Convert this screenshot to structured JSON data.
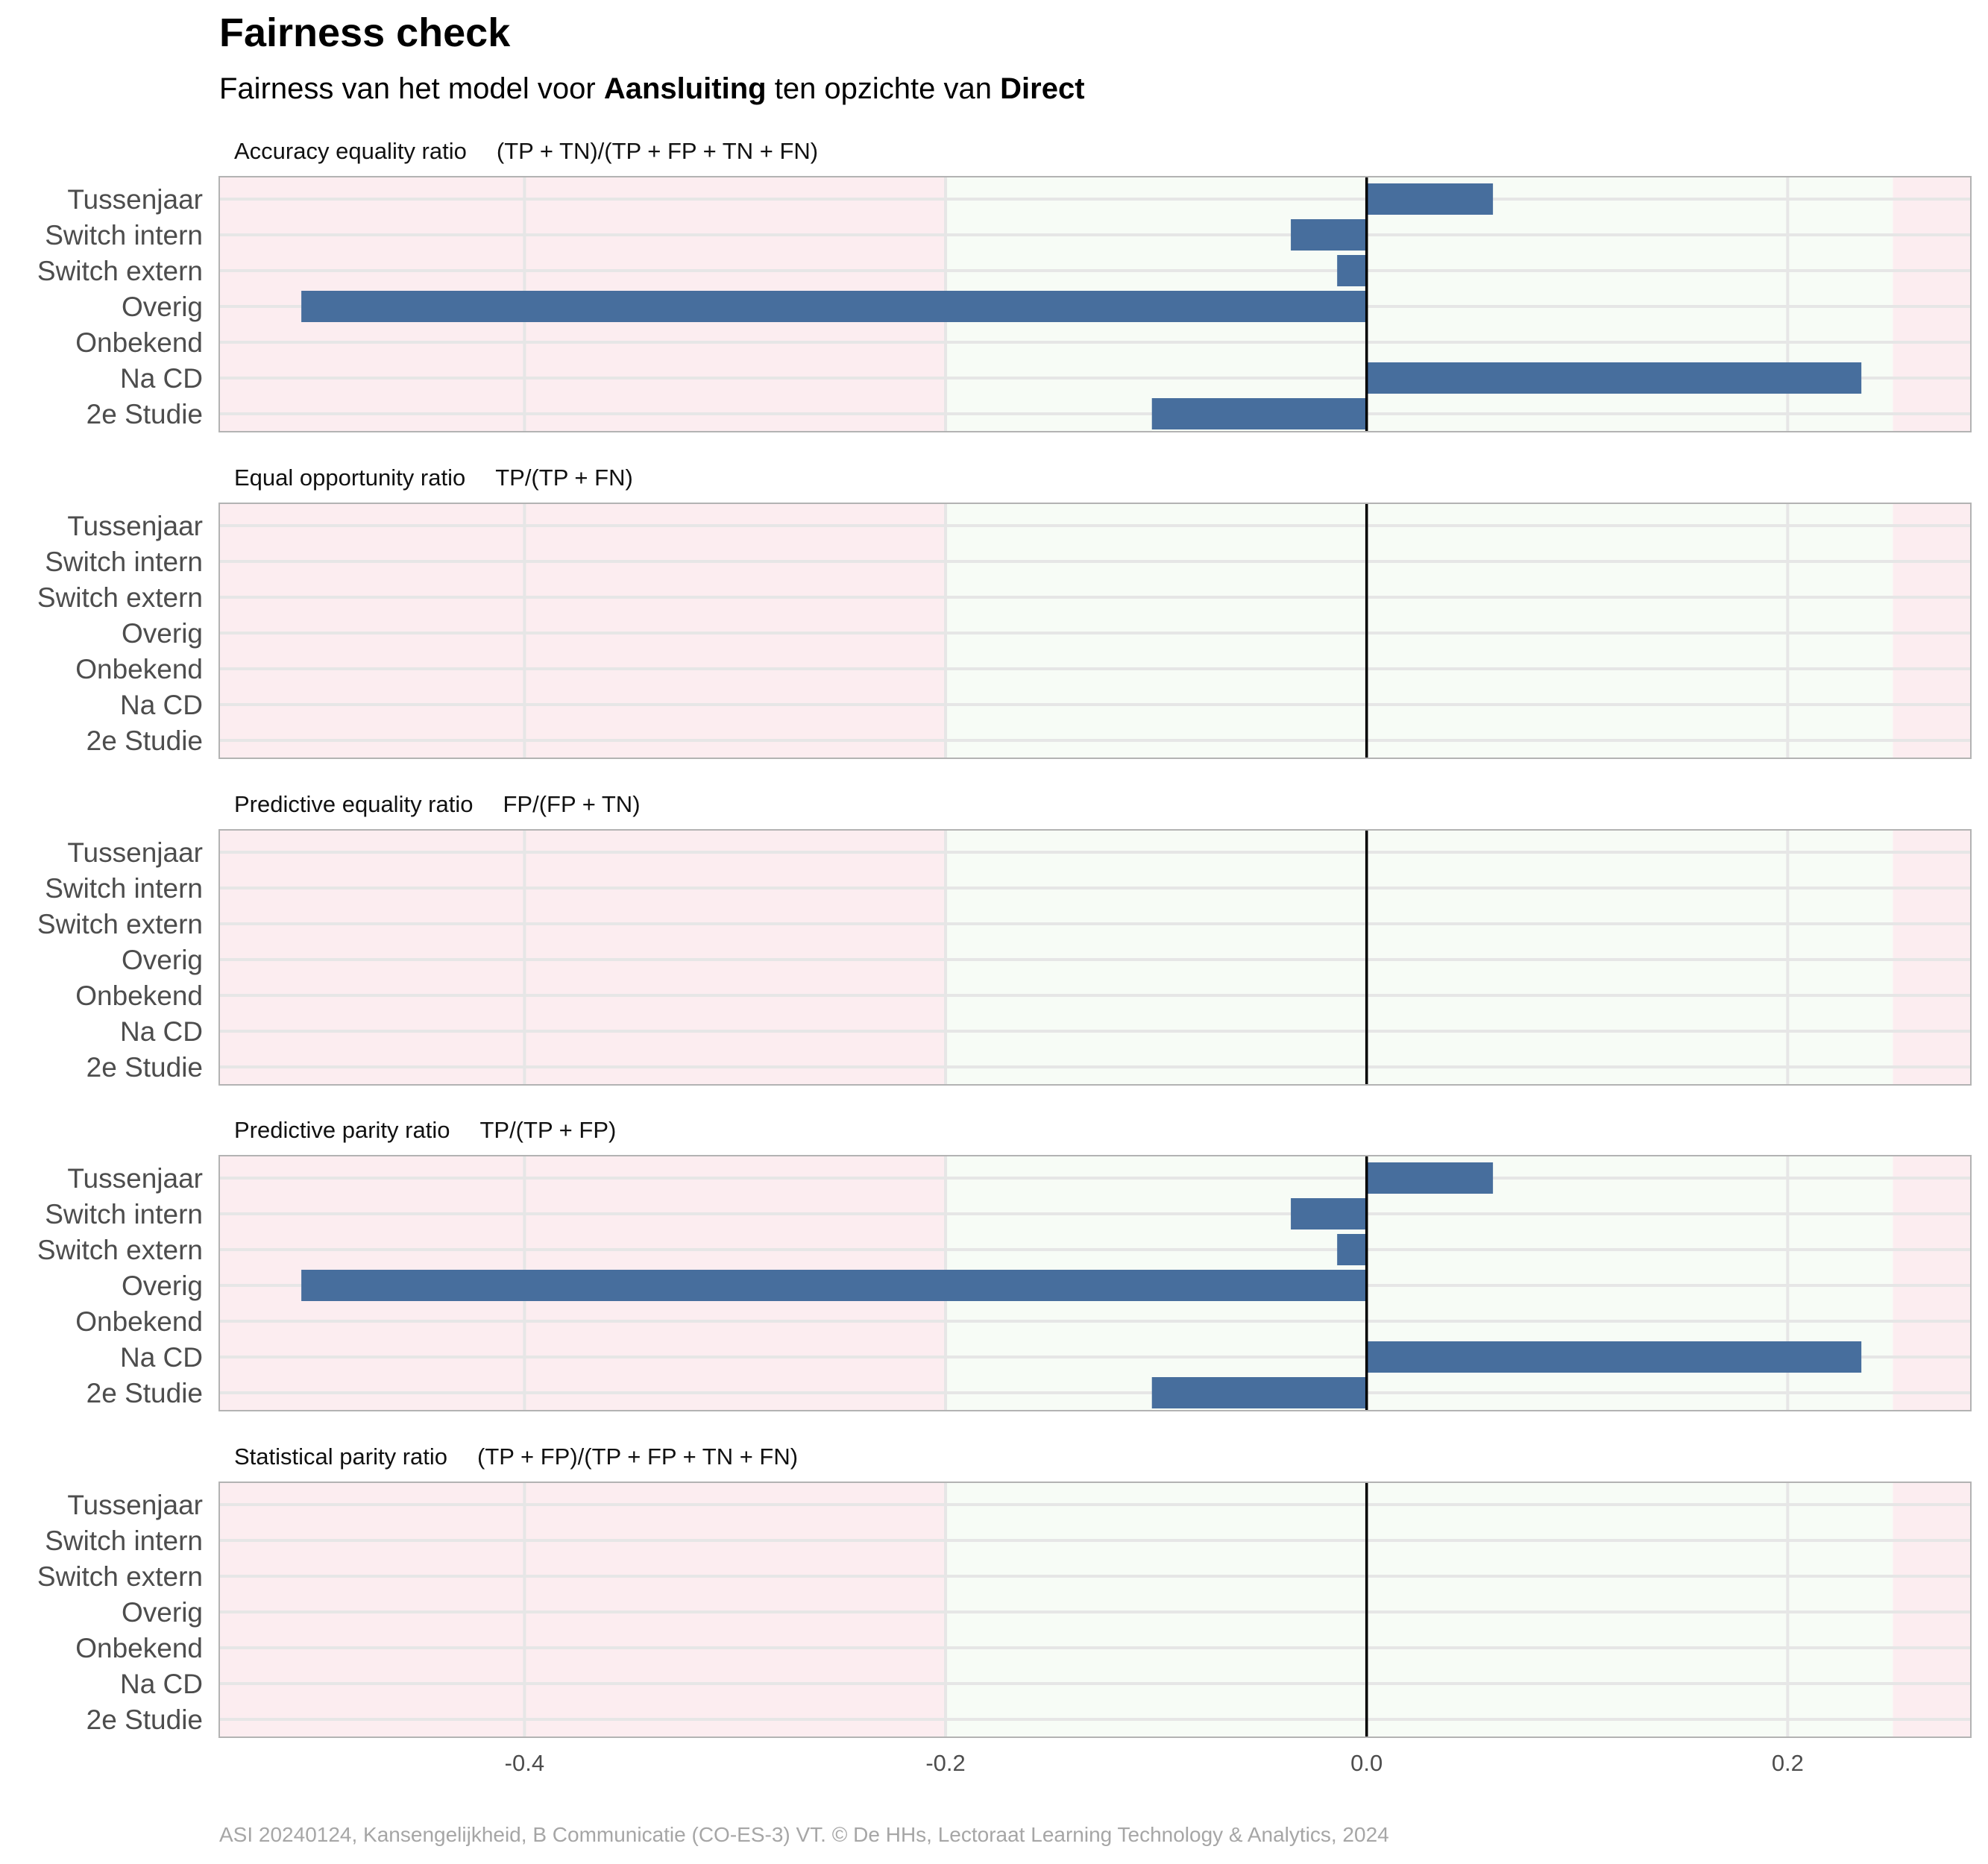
{
  "chart_data": {
    "type": "bar",
    "orientation": "horizontal",
    "title": "Fairness check",
    "subtitle": {
      "prefix": "Fairness van het model voor ",
      "model": "Aansluiting",
      "middle": " ten opzichte van ",
      "reference": "Direct"
    },
    "caption": "ASI 20240124, Kansengelijkheid, B Communicatie (CO-ES-3) VT. © De HHs, Lectoraat Learning Technology & Analytics, 2024",
    "categories": [
      "Tussenjaar",
      "Switch intern",
      "Switch extern",
      "Overig",
      "Onbekend",
      "Na CD",
      "2e Studie"
    ],
    "xlim": [
      -0.545,
      0.287
    ],
    "x_ticks": [
      -0.4,
      -0.2,
      0.0,
      0.2
    ],
    "x_tick_labels": [
      "-0.4",
      "-0.2",
      "0.0",
      "0.2"
    ],
    "fair_range": [
      -0.2,
      0.25
    ],
    "colors": {
      "bar": "#476e9d",
      "fair_band": "#f7fcf6",
      "unfair_band": "#fcedf0",
      "zero_line": "#000000"
    },
    "grid": true,
    "panels": [
      {
        "metric": "Accuracy equality ratio",
        "formula": "(TP + TN)/(TP + FP + TN + FN)",
        "values": [
          0.06,
          -0.036,
          -0.014,
          -0.506,
          null,
          0.235,
          -0.102
        ]
      },
      {
        "metric": "Equal opportunity ratio",
        "formula": "TP/(TP + FN)",
        "values": [
          null,
          null,
          null,
          null,
          null,
          null,
          null
        ]
      },
      {
        "metric": "Predictive equality ratio",
        "formula": "FP/(FP + TN)",
        "values": [
          null,
          null,
          null,
          null,
          null,
          null,
          null
        ]
      },
      {
        "metric": "Predictive parity ratio",
        "formula": "TP/(TP + FP)",
        "values": [
          0.06,
          -0.036,
          -0.014,
          -0.506,
          null,
          0.235,
          -0.102
        ]
      },
      {
        "metric": "Statistical parity ratio",
        "formula": "(TP + FP)/(TP + FP + TN + FN)",
        "values": [
          null,
          null,
          null,
          null,
          null,
          null,
          null
        ]
      }
    ]
  }
}
